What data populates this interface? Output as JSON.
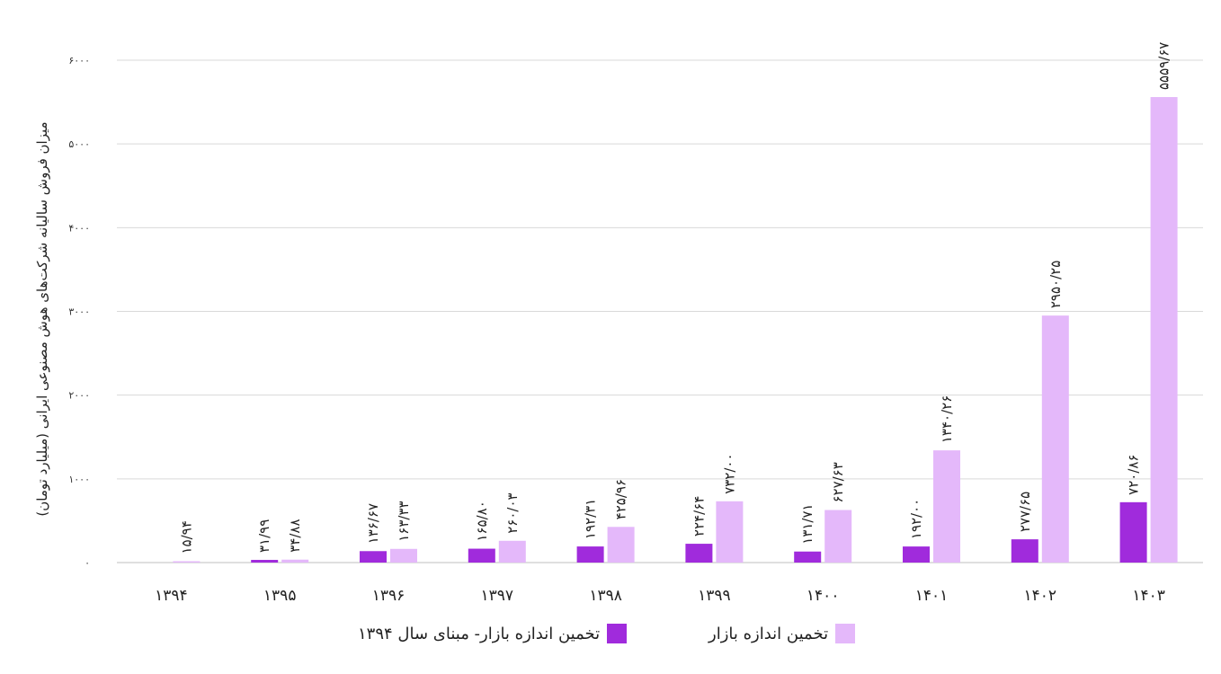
{
  "chart_data": {
    "type": "bar",
    "ylabel": "میزان فروش سالیانه شرکت‌های هوش مصنوعی ایرانی (میلیارد تومان)",
    "ylim": [
      0,
      6000
    ],
    "yticks": [
      0,
      1000,
      2000,
      3000,
      4000,
      5000,
      6000
    ],
    "ytick_labels": [
      "۰",
      "۱۰۰۰",
      "۲۰۰۰",
      "۳۰۰۰",
      "۴۰۰۰",
      "۵۰۰۰",
      "۶۰۰۰"
    ],
    "grid": true,
    "legend_position": "bottom",
    "categories": [
      "۱۳۹۴",
      "۱۳۹۵",
      "۱۳۹۶",
      "۱۳۹۷",
      "۱۳۹۸",
      "۱۳۹۹",
      "۱۴۰۰",
      "۱۴۰۱",
      "۱۴۰۲",
      "۱۴۰۳"
    ],
    "series": [
      {
        "name": "تخمین اندازه بازار- مبنای سال ۱۳۹۴",
        "color": "#a02bdc",
        "values": [
          null,
          31.99,
          136.67,
          165.8,
          192.31,
          224.64,
          131.71,
          192.0,
          277.65,
          720.86
        ],
        "labels": [
          "",
          "۳۱/۹۹",
          "۱۳۶/۶۷",
          "۱۶۵/۸۰",
          "۱۹۲/۳۱",
          "۲۲۴/۶۴",
          "۱۳۱/۷۱",
          "۱۹۲/۰۰",
          "۲۷۷/۶۵",
          "۷۲۰/۸۶"
        ]
      },
      {
        "name": "تخمین اندازه بازار",
        "color": "#e4b8fa",
        "values": [
          15.94,
          34.88,
          163.33,
          260.03,
          425.96,
          732.0,
          627.63,
          1340.26,
          2950.25,
          5559.67
        ],
        "labels": [
          "۱۵/۹۴",
          "۳۴/۸۸",
          "۱۶۳/۳۳",
          "۲۶۰/۰۳",
          "۴۲۵/۹۶",
          "۷۳۲/۰۰",
          "۶۲۷/۶۳",
          "۱۳۴۰/۲۶",
          "۲۹۵۰/۲۵",
          "۵۵۵۹/۶۷"
        ]
      }
    ]
  }
}
